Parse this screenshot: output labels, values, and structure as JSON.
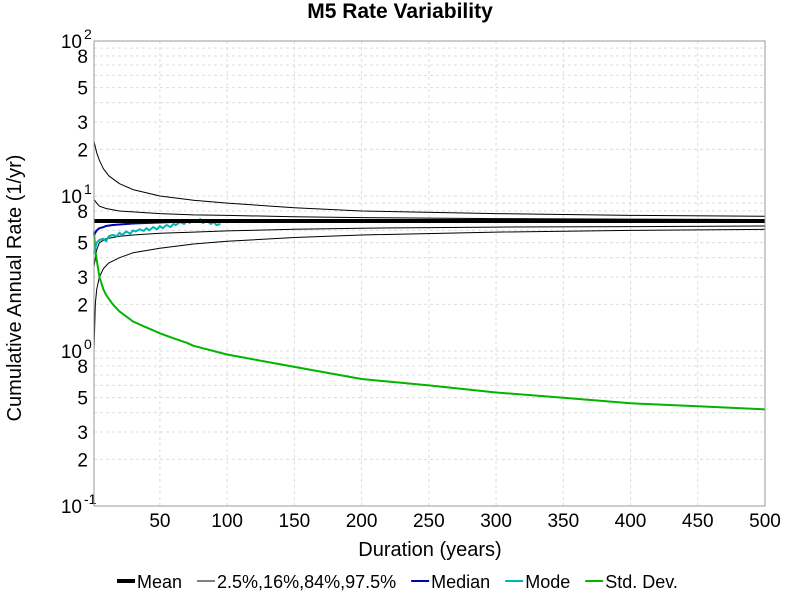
{
  "chart_data": {
    "type": "line",
    "title": "M5 Rate Variability",
    "xlabel": "Duration (years)",
    "ylabel": "Cumulative Annual Rate (1/yr)",
    "xlim": [
      1,
      500
    ],
    "ylim": [
      0.1,
      100
    ],
    "yscale": "log",
    "grid": true,
    "legend_position": "bottom",
    "x_ticks": [
      50,
      100,
      150,
      200,
      250,
      300,
      350,
      400,
      450,
      500
    ],
    "y_major_ticks": [
      {
        "value": 0.1,
        "base": "10",
        "exp": "-1"
      },
      {
        "value": 1,
        "base": "10",
        "exp": "0"
      },
      {
        "value": 10,
        "base": "10",
        "exp": "1"
      },
      {
        "value": 100,
        "base": "10",
        "exp": "2"
      }
    ],
    "y_minor_labeled": [
      {
        "value": 0.2,
        "label": "2"
      },
      {
        "value": 0.3,
        "label": "3"
      },
      {
        "value": 0.5,
        "label": "5"
      },
      {
        "value": 0.8,
        "label": "8"
      },
      {
        "value": 2,
        "label": "2"
      },
      {
        "value": 3,
        "label": "3"
      },
      {
        "value": 5,
        "label": "5"
      },
      {
        "value": 8,
        "label": "8"
      },
      {
        "value": 20,
        "label": "2"
      },
      {
        "value": 30,
        "label": "3"
      },
      {
        "value": 50,
        "label": "5"
      },
      {
        "value": 80,
        "label": "8"
      }
    ],
    "series": [
      {
        "name": "Mean",
        "color": "#000000",
        "width": 4,
        "x": [
          1,
          500
        ],
        "y": [
          6.9,
          6.9
        ]
      },
      {
        "name": "2.5%,16%,84%,97.5%",
        "color": "#000000",
        "width": 1,
        "lines": [
          {
            "x": [
              1,
              3,
              5,
              8,
              12,
              20,
              30,
              50,
              75,
              100,
              150,
              200,
              300,
              400,
              500
            ],
            "y": [
              22.5,
              19.0,
              17.0,
              15.0,
              13.5,
              12.0,
              11.0,
              10.0,
              9.4,
              9.0,
              8.4,
              8.0,
              7.7,
              7.5,
              7.4
            ]
          },
          {
            "x": [
              1,
              3,
              5,
              10,
              20,
              30,
              50,
              75,
              100,
              150,
              200,
              300,
              400,
              500
            ],
            "y": [
              9.5,
              9.0,
              8.6,
              8.3,
              8.0,
              7.9,
              7.7,
              7.55,
              7.5,
              7.35,
              7.25,
              7.15,
              7.1,
              7.05
            ]
          },
          {
            "x": [
              1,
              3,
              5,
              10,
              20,
              30,
              50,
              75,
              100,
              150,
              200,
              300,
              400,
              500
            ],
            "y": [
              3.5,
              4.5,
              5.0,
              5.3,
              5.5,
              5.6,
              5.75,
              5.85,
              5.95,
              6.1,
              6.2,
              6.3,
              6.35,
              6.4
            ]
          },
          {
            "x": [
              1,
              2,
              3,
              5,
              8,
              12,
              20,
              30,
              50,
              75,
              100,
              150,
              200,
              300,
              400,
              500
            ],
            "y": [
              1.0,
              2.0,
              2.5,
              3.0,
              3.4,
              3.7,
              4.0,
              4.3,
              4.6,
              4.9,
              5.1,
              5.4,
              5.6,
              5.85,
              6.0,
              6.1
            ]
          }
        ]
      },
      {
        "name": "Median",
        "color": "#0000b4",
        "width": 2,
        "x": [
          1,
          3,
          5,
          8,
          10,
          15,
          20,
          25,
          30,
          40,
          50,
          60,
          70,
          80,
          90
        ],
        "y": [
          5.6,
          6.0,
          6.2,
          6.3,
          6.4,
          6.5,
          6.55,
          6.6,
          6.65,
          6.7,
          6.75,
          6.8,
          6.8,
          6.85,
          6.85
        ]
      },
      {
        "name": "Mode",
        "color": "#00b4b4",
        "width": 2,
        "x": [
          1,
          3,
          5,
          8,
          10,
          12,
          15,
          18,
          20,
          22,
          25,
          28,
          30,
          32,
          35,
          38,
          40,
          42,
          45,
          48,
          50,
          52,
          55,
          58,
          60,
          62,
          65,
          68,
          70,
          72,
          75,
          78,
          80,
          82,
          85,
          88,
          90,
          92,
          95
        ],
        "y": [
          4.3,
          5.0,
          5.2,
          5.3,
          5.1,
          5.5,
          5.6,
          5.5,
          5.8,
          5.6,
          5.9,
          5.7,
          6.0,
          5.9,
          6.1,
          5.95,
          6.2,
          6.0,
          6.3,
          6.1,
          6.4,
          6.2,
          6.5,
          6.3,
          6.6,
          6.5,
          6.8,
          6.6,
          6.9,
          6.7,
          7.0,
          6.8,
          7.1,
          6.7,
          6.9,
          6.6,
          6.8,
          6.5,
          6.6
        ]
      },
      {
        "name": "Std. Dev.",
        "color": "#00b400",
        "width": 2,
        "x": [
          1,
          2,
          3,
          5,
          8,
          10,
          15,
          20,
          30,
          40,
          50,
          60,
          70,
          75,
          100,
          150,
          200,
          250,
          300,
          350,
          400,
          450,
          500
        ],
        "y": [
          5.9,
          4.4,
          3.9,
          3.0,
          2.5,
          2.3,
          2.0,
          1.8,
          1.55,
          1.42,
          1.3,
          1.21,
          1.13,
          1.08,
          0.95,
          0.79,
          0.66,
          0.6,
          0.54,
          0.5,
          0.46,
          0.44,
          0.42
        ]
      }
    ]
  }
}
